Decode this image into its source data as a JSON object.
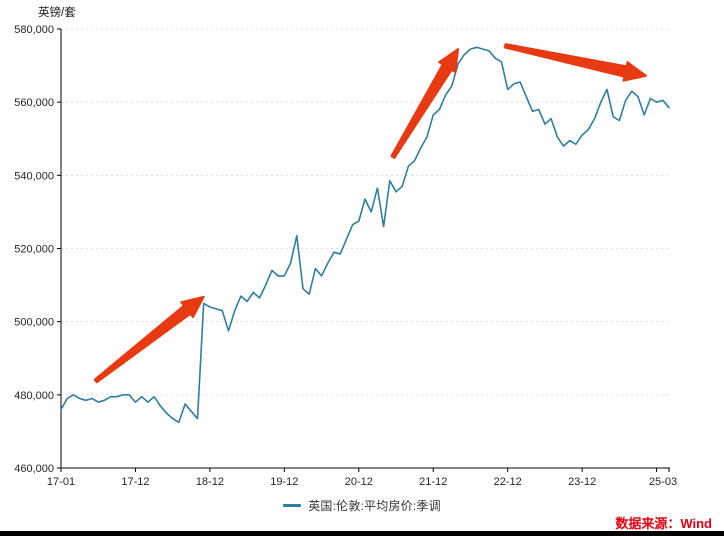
{
  "chart": {
    "y_axis_title": "英镑/套",
    "legend": {
      "label": "英国:伦敦:平均房价:季调",
      "color": "#2e7f9f"
    },
    "source_note": "数据来源：Wind",
    "source_color": "#e60012",
    "arrow_color": "#e83a12"
  },
  "chart_data": {
    "type": "line",
    "title": "",
    "ylabel": "英镑/套",
    "x_unit": "month (YY-MM)",
    "x_start": "2017-01",
    "x_end": "2025-03",
    "n_points": 99,
    "ylim": [
      460000,
      580000
    ],
    "y_ticks": [
      460000,
      480000,
      500000,
      520000,
      540000,
      560000,
      580000
    ],
    "x_ticks": [
      {
        "label": "17-01",
        "i": 0
      },
      {
        "label": "17-12",
        "i": 12
      },
      {
        "label": "18-12",
        "i": 24
      },
      {
        "label": "19-12",
        "i": 36
      },
      {
        "label": "20-12",
        "i": 48
      },
      {
        "label": "21-12",
        "i": 60
      },
      {
        "label": "22-12",
        "i": 72
      },
      {
        "label": "23-12",
        "i": 84
      },
      {
        "label": "",
        "i": 96
      },
      {
        "label": "25-03",
        "i": 98
      }
    ],
    "grid": "horizontal-dotted",
    "legend_position": "bottom-center",
    "series": [
      {
        "name": "英国:伦敦:平均房价:季调",
        "color": "#2e7f9f",
        "values": [
          476000,
          479000,
          480000,
          479000,
          478500,
          479000,
          478000,
          478500,
          479500,
          479500,
          480000,
          480000,
          478000,
          479500,
          478000,
          479500,
          477000,
          475000,
          473500,
          472500,
          477500,
          475500,
          473500,
          505000,
          504000,
          503500,
          503000,
          497500,
          503000,
          507000,
          505500,
          508000,
          506500,
          510000,
          514000,
          512500,
          512500,
          516000,
          523500,
          509000,
          507500,
          514500,
          512500,
          516000,
          519000,
          518500,
          522500,
          526500,
          527500,
          533500,
          530000,
          536500,
          526000,
          538500,
          535500,
          537000,
          542500,
          544000,
          547500,
          550500,
          556500,
          558000,
          562000,
          564500,
          570500,
          573000,
          574500,
          575000,
          574500,
          574000,
          572000,
          571000,
          563500,
          565000,
          565500,
          561500,
          557500,
          558000,
          554000,
          555500,
          550500,
          548000,
          549500,
          548500,
          551000,
          552500,
          555500,
          560000,
          563500,
          556000,
          555000,
          560500,
          563000,
          561500,
          556500,
          561000,
          560000,
          560500,
          558500
        ]
      }
    ],
    "annotations": [
      {
        "name": "trend-arrow-up-1",
        "type": "arrow",
        "from": {
          "i": 5.6,
          "v": 483800
        },
        "to": {
          "i": 23.0,
          "v": 506800
        }
      },
      {
        "name": "trend-arrow-up-2",
        "type": "arrow",
        "from": {
          "i": 53.5,
          "v": 545000
        },
        "to": {
          "i": 64.0,
          "v": 574500
        }
      },
      {
        "name": "trend-arrow-down-3",
        "type": "arrow",
        "from": {
          "i": 71.6,
          "v": 575400
        },
        "to": {
          "i": 94.3,
          "v": 567200
        }
      }
    ]
  }
}
